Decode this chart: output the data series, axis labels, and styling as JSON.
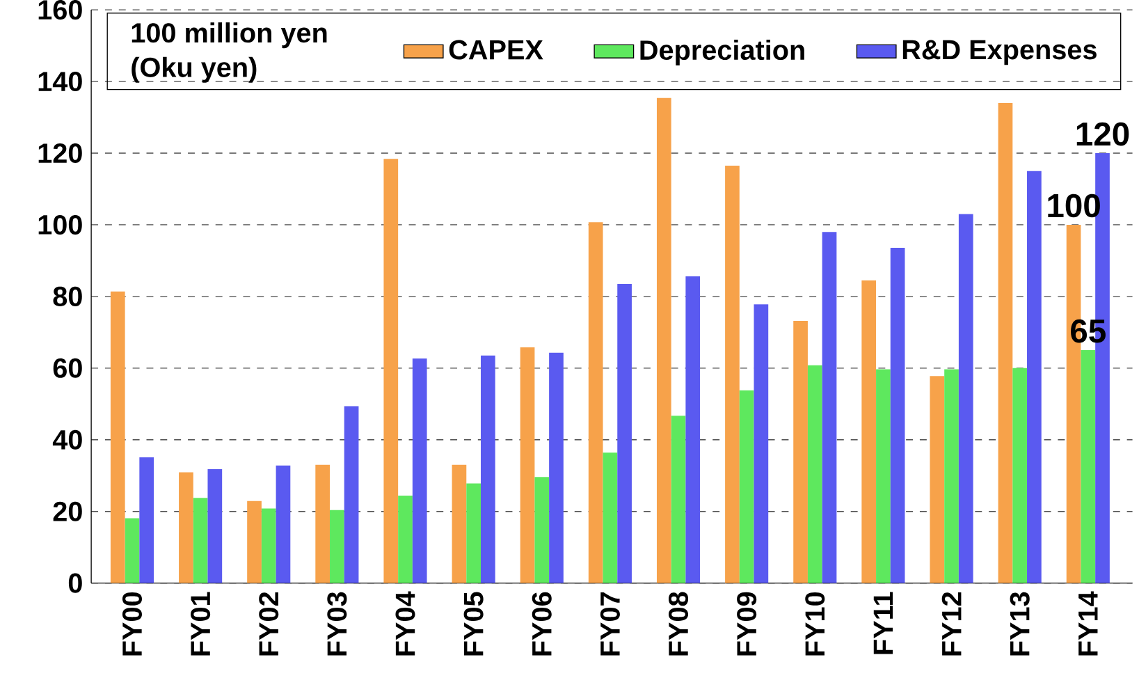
{
  "chart_data": {
    "type": "bar",
    "legend_title": "100 million yen (Oku yen)",
    "categories": [
      "FY00",
      "FY01",
      "FY02",
      "FY03",
      "FY04",
      "FY05",
      "FY06",
      "FY07",
      "FY08",
      "FY09",
      "FY10",
      "FY11",
      "FY12",
      "FY13",
      "FY14"
    ],
    "series": [
      {
        "name": "CAPEX",
        "color": "#f7a24a",
        "values": [
          81.4,
          30.9,
          22.9,
          33,
          118.4,
          33,
          65.8,
          100.7,
          135.4,
          116.5,
          73.2,
          84.5,
          57.8,
          134,
          100
        ],
        "value_labels": [
          null,
          null,
          null,
          null,
          null,
          null,
          null,
          null,
          null,
          null,
          null,
          null,
          null,
          null,
          "100"
        ]
      },
      {
        "name": "Depreciation",
        "color": "#5ee85e",
        "values": [
          18.1,
          23.8,
          20.8,
          20.4,
          24.4,
          27.8,
          29.6,
          36.4,
          46.7,
          53.8,
          60.8,
          59.7,
          59.7,
          60,
          65
        ],
        "value_labels": [
          null,
          null,
          null,
          null,
          null,
          null,
          null,
          null,
          null,
          null,
          null,
          null,
          null,
          null,
          "65"
        ]
      },
      {
        "name": "R&D Expenses",
        "color": "#5a5af0",
        "values": [
          35.1,
          31.8,
          32.8,
          49.4,
          62.7,
          63.5,
          64.3,
          83.5,
          85.6,
          77.8,
          98,
          93.6,
          103,
          115,
          120
        ],
        "value_labels": [
          null,
          null,
          null,
          null,
          null,
          null,
          null,
          null,
          null,
          null,
          null,
          null,
          null,
          null,
          "120"
        ]
      }
    ],
    "ylim": [
      0,
      160
    ],
    "yticks": [
      0,
      20,
      40,
      60,
      80,
      100,
      120,
      140,
      160
    ],
    "grid": "y",
    "legend": "top"
  }
}
